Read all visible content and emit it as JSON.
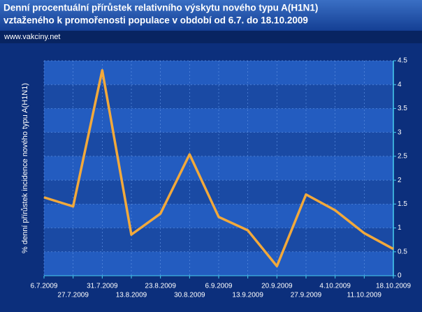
{
  "chart_data": {
    "type": "line",
    "title": [
      "Denní procentuální přírůstek relativního výskytu nového typu A(H1N1)",
      "vztaženého k promořenosti populace v období od 6.7. do 18.10.2009"
    ],
    "source": "www.vakciny.net",
    "y_label": "% denní přírůstek incidence nového typu A(H1N1)",
    "categories": [
      "6.7.2009",
      "27.7.2009",
      "31.7.2009",
      "13.8.2009",
      "23.8.2009",
      "30.8.2009",
      "6.9.2009",
      "13.9.2009",
      "20.9.2009",
      "27.9.2009",
      "4.10.2009",
      "11.10.2009",
      "18.10.2009"
    ],
    "values": [
      1.64,
      1.45,
      4.3,
      0.86,
      1.3,
      2.54,
      1.23,
      0.95,
      0.2,
      1.7,
      1.37,
      0.89,
      0.56
    ],
    "color": "#f2a93b",
    "ylim": [
      0,
      4.5
    ],
    "yticks": [
      0,
      0.5,
      1,
      1.5,
      2,
      2.5,
      3,
      3.5,
      4,
      4.5
    ],
    "grid": true
  }
}
